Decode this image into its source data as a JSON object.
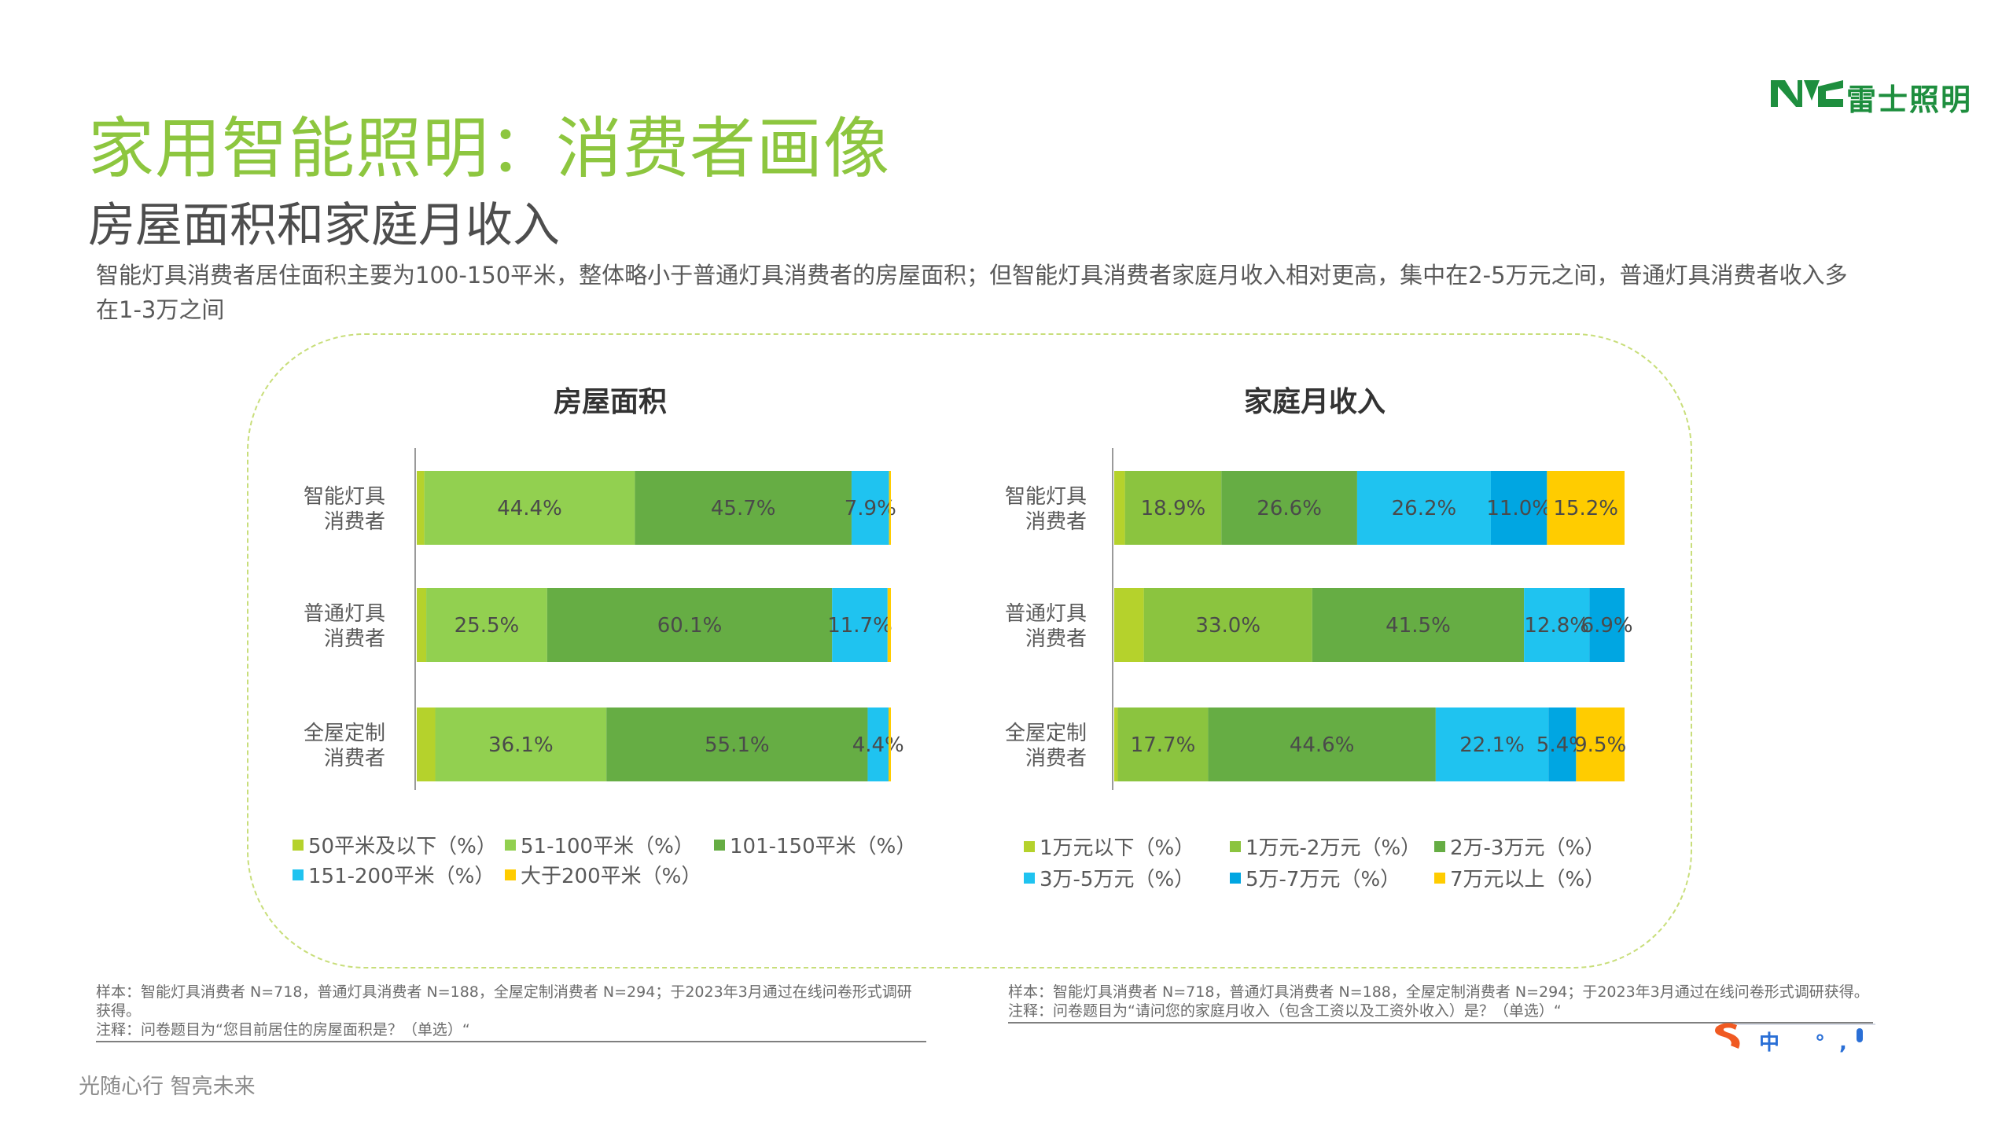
{
  "header": {
    "title": "家用智能照明：消费者画像",
    "subtitle": "房屋面积和家庭月收入",
    "description": "智能灯具消费者居住面积主要为100-150平米，整体略小于普通灯具消费者的房屋面积；但智能灯具消费者家庭月收入相对更高，集中在2-5万元之间，普通灯具消费者收入多在1-3万之间",
    "logo_text": "雷士照明",
    "logo_icon": "nvc-logo-icon"
  },
  "colors": {
    "title_green": "#8DC63F",
    "logo_green": "#1E8E3E",
    "panel_border": "#C8DE7A"
  },
  "chart_data": [
    {
      "type": "bar",
      "orientation": "horizontal-stacked-100",
      "title": "房屋面积",
      "categories": [
        "智能灯具\n消费者",
        "普通灯具\n消费者",
        "全屋定制\n消费者"
      ],
      "series": [
        {
          "name": "50平米及以下（%）",
          "color": "#B5D22C",
          "values": [
            1.6,
            2.0,
            3.9
          ],
          "labels": [
            "",
            "",
            ""
          ]
        },
        {
          "name": "51-100平米（%）",
          "color": "#92D050",
          "values": [
            44.4,
            25.5,
            36.1
          ],
          "labels": [
            "44.4%",
            "25.5%",
            "36.1%"
          ]
        },
        {
          "name": "101-150平米（%）",
          "color": "#66AD44",
          "values": [
            45.7,
            60.1,
            55.1
          ],
          "labels": [
            "45.7%",
            "60.1%",
            "55.1%"
          ]
        },
        {
          "name": "151-200平米（%）",
          "color": "#1FC3F0",
          "values": [
            7.9,
            11.7,
            4.4
          ],
          "labels": [
            "7.9%",
            "11.7%",
            "4.4%"
          ]
        },
        {
          "name": "大于200平米（%）",
          "color": "#FFCC00",
          "values": [
            0.4,
            0.7,
            0.5
          ],
          "labels": [
            "",
            "",
            ""
          ]
        }
      ],
      "xlim": [
        0,
        100
      ],
      "legend_position": "bottom",
      "grid": false
    },
    {
      "type": "bar",
      "orientation": "horizontal-stacked-100",
      "title": "家庭月收入",
      "categories": [
        "智能灯具\n消费者",
        "普通灯具\n消费者",
        "全屋定制\n消费者"
      ],
      "series": [
        {
          "name": "1万元以下（%）",
          "color": "#B5D22C",
          "values": [
            2.1,
            5.8,
            0.7
          ],
          "labels": [
            "",
            "",
            ""
          ]
        },
        {
          "name": "1万元-2万元（%）",
          "color": "#8BC43F",
          "values": [
            18.9,
            33.0,
            17.7
          ],
          "labels": [
            "18.9%",
            "33.0%",
            "17.7%"
          ]
        },
        {
          "name": "2万-3万元（%）",
          "color": "#66AD44",
          "values": [
            26.6,
            41.5,
            44.6
          ],
          "labels": [
            "26.6%",
            "41.5%",
            "44.6%"
          ]
        },
        {
          "name": "3万-5万元（%）",
          "color": "#1FC3F0",
          "values": [
            26.2,
            12.8,
            22.1
          ],
          "labels": [
            "26.2%",
            "12.8%",
            "22.1%"
          ]
        },
        {
          "name": "5万-7万元（%）",
          "color": "#00A6E2",
          "values": [
            11.0,
            6.9,
            5.4
          ],
          "labels": [
            "11.0%",
            "6.9%",
            "5.4%"
          ]
        },
        {
          "name": "7万元以上（%）",
          "color": "#FFCC00",
          "values": [
            15.2,
            0.0,
            9.5
          ],
          "labels": [
            "15.2%",
            "",
            "9.5%"
          ]
        }
      ],
      "xlim": [
        0,
        100
      ],
      "legend_position": "bottom",
      "grid": false
    }
  ],
  "footnotes": {
    "left": {
      "sample": "样本：智能灯具消费者 N=718，普通灯具消费者 N=188，全屋定制消费者 N=294；于2023年3月通过在线问卷形式调研获得。",
      "note": "注释：问卷题目为“您目前居住的房屋面积是？（单选）“"
    },
    "right": {
      "sample": "样本：智能灯具消费者 N=718，普通灯具消费者 N=188，全屋定制消费者 N=294；于2023年3月通过在线问卷形式调研获得。",
      "note": "注释：问卷题目为“请问您的家庭月收入（包含工资以及工资外收入）是？（单选）“"
    }
  },
  "footer": {
    "slogan": "光随心行   智亮未来"
  },
  "ime_toolbar": {
    "text": "中 °,",
    "icons": [
      "sogou-logo-icon",
      "mic-icon"
    ]
  }
}
